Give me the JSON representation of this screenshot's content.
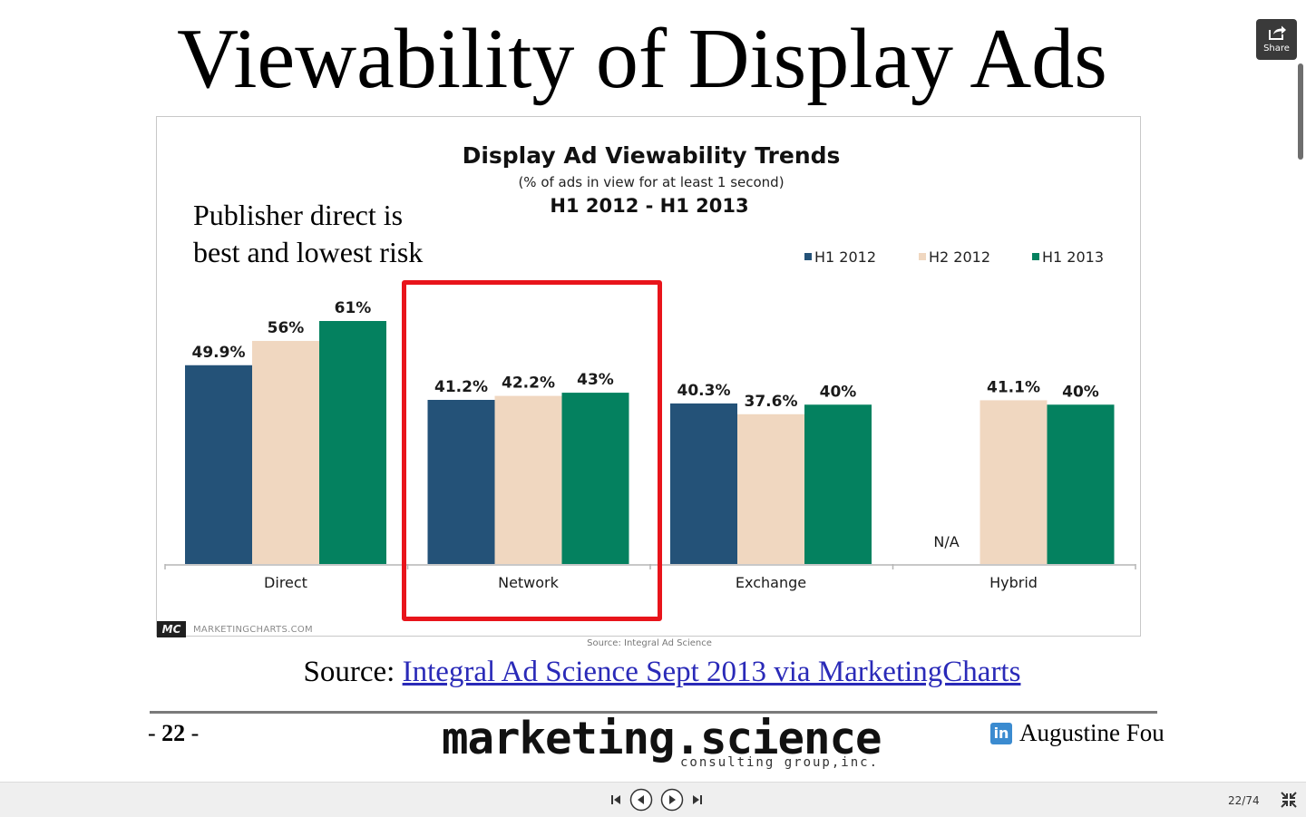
{
  "slide": {
    "title": "Viewability of Display Ads",
    "annotation": "Publisher direct is best and lowest risk",
    "source_prefix": "Source: ",
    "source_link": "Integral Ad Science Sept 2013 via MarketingCharts",
    "page_number": "22",
    "brand": "marketing.science",
    "brand_sub": "consulting group,inc.",
    "author": "Augustine Fou",
    "author_icon_text": "in"
  },
  "chart_data": {
    "type": "bar",
    "title": "Display Ad Viewability Trends",
    "subtitle": "(% of ads in view for at least 1 second)",
    "period": "H1 2012 - H1 2013",
    "categories": [
      "Direct",
      "Network",
      "Exchange",
      "Hybrid"
    ],
    "series": [
      {
        "name": "H1 2012",
        "color": "#245278",
        "values": [
          49.9,
          41.2,
          40.3,
          null
        ],
        "labels": [
          "49.9%",
          "41.2%",
          "40.3%",
          "N/A"
        ]
      },
      {
        "name": "H2 2012",
        "color": "#f0d7c0",
        "values": [
          56,
          42.2,
          37.6,
          41.1
        ],
        "labels": [
          "56%",
          "42.2%",
          "37.6%",
          "41.1%"
        ]
      },
      {
        "name": "H1 2013",
        "color": "#04815f",
        "values": [
          61,
          43,
          40,
          40
        ],
        "labels": [
          "61%",
          "43%",
          "40%",
          "40%"
        ]
      }
    ],
    "highlighted_category": "Network",
    "ylim": [
      0,
      61
    ],
    "grid": false,
    "legend_position": "top-right",
    "logo_badge": "MC",
    "logo_text": "MARKETINGCHARTS.COM",
    "source_note": "Source: Integral Ad Science"
  },
  "viewer": {
    "share_label": "Share",
    "page_counter": "22/74",
    "colors": {
      "red_highlight": "#e8141b",
      "link": "#2a2ab8"
    }
  }
}
